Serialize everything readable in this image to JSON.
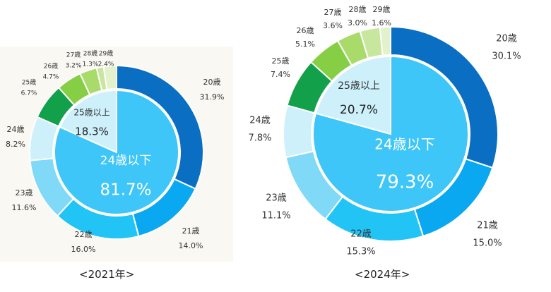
{
  "chart_data": [
    {
      "type": "pie",
      "caption": "<2021年>",
      "outer_ring": {
        "categories": [
          "20歳",
          "21歳",
          "22歳",
          "23歳",
          "24歳",
          "25歳",
          "26歳",
          "27歳",
          "28歳",
          "29歳"
        ],
        "values": [
          31.9,
          14.0,
          16.0,
          11.6,
          8.2,
          6.7,
          4.7,
          3.2,
          1.3,
          2.4
        ],
        "value_labels": [
          "31.9%",
          "14.0%",
          "16.0%",
          "11.6%",
          "8.2%",
          "6.7%",
          "4.7%",
          "3.2%",
          "1.3%",
          "2.4%"
        ]
      },
      "inner_ring": {
        "categories": [
          "24歳以下",
          "25歳以上"
        ],
        "values": [
          81.7,
          18.3
        ],
        "value_labels": [
          "81.7%",
          "18.3%"
        ]
      }
    },
    {
      "type": "pie",
      "caption": "<2024年>",
      "outer_ring": {
        "categories": [
          "20歳",
          "21歳",
          "22歳",
          "23歳",
          "24歳",
          "25歳",
          "26歳",
          "27歳",
          "28歳",
          "29歳"
        ],
        "values": [
          30.1,
          15.0,
          15.3,
          11.1,
          7.8,
          7.4,
          5.1,
          3.6,
          3.0,
          1.6
        ],
        "value_labels": [
          "30.1%",
          "15.0%",
          "15.3%",
          "11.1%",
          "7.8%",
          "7.4%",
          "5.1%",
          "3.6%",
          "3.0%",
          "1.6%"
        ]
      },
      "inner_ring": {
        "categories": [
          "24歳以下",
          "25歳以上"
        ],
        "values": [
          79.3,
          20.7
        ],
        "value_labels": [
          "79.3%",
          "20.7%"
        ]
      }
    }
  ],
  "colors": {
    "outer": [
      "#0a6fc2",
      "#0aa8f0",
      "#21c4f5",
      "#7fd9f7",
      "#cdf0fb",
      "#12a04a",
      "#86cf45",
      "#a8db6a",
      "#c8e79e",
      "#e3f1cc"
    ],
    "inner_under": "#3dc6f7",
    "inner_over": "#cdf0fb"
  }
}
